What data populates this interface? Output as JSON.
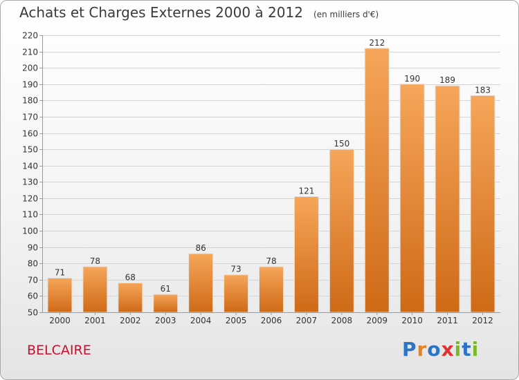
{
  "header": {
    "title": "Achats et Charges Externes 2000 à 2012",
    "unit": "(en milliers d'€)"
  },
  "footer": {
    "commune": "BELCAIRE",
    "brand": "Proxiti",
    "brand_letters": [
      {
        "ch": "P",
        "color": "#2b74c6"
      },
      {
        "ch": "r",
        "color": "#e8821e"
      },
      {
        "ch": "o",
        "color": "#2b74c6"
      },
      {
        "ch": "x",
        "color": "#e03030"
      },
      {
        "ch": "i",
        "color": "#79b928"
      },
      {
        "ch": "t",
        "color": "#2b74c6"
      },
      {
        "ch": "i",
        "color": "#79b928"
      }
    ]
  },
  "colors": {
    "bar_top": "#f6a65a",
    "bar_bottom": "#cf6a16",
    "grid": "#d4d4d4",
    "axis": "#9a9a9a",
    "text": "#333333",
    "commune": "#c8102e"
  },
  "chart_data": {
    "type": "bar",
    "title": "Achats et Charges Externes 2000 à 2012",
    "subtitle": "(en milliers d'€)",
    "categories": [
      "2000",
      "2001",
      "2002",
      "2003",
      "2004",
      "2005",
      "2006",
      "2007",
      "2008",
      "2009",
      "2010",
      "2011",
      "2012"
    ],
    "values": [
      71,
      78,
      68,
      61,
      86,
      73,
      78,
      121,
      150,
      212,
      190,
      189,
      183
    ],
    "ylim": [
      50,
      220
    ],
    "yticks": [
      50,
      60,
      70,
      80,
      90,
      100,
      110,
      120,
      130,
      140,
      150,
      160,
      170,
      180,
      190,
      200,
      210,
      220
    ],
    "grid": true,
    "xlabel": "",
    "ylabel": ""
  }
}
